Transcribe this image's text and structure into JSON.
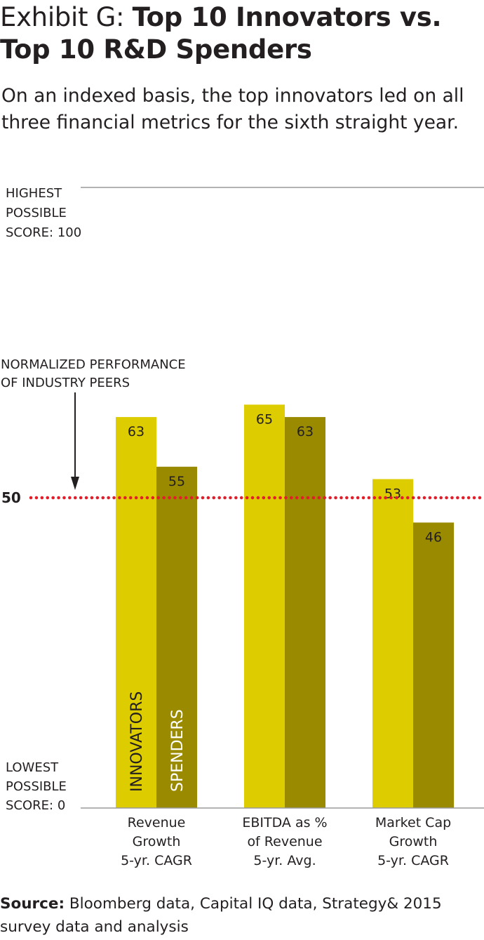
{
  "title": {
    "prefix": "Exhibit G: ",
    "main": "Top 10 Innovators vs. Top 10 R&D Spenders"
  },
  "subtitle": "On an indexed basis, the top innovators led on all three financial metrics for the sixth straight year.",
  "source": {
    "label": "Source:",
    "text": " Bloomberg data, Capital IQ data, Strategy& 2015 survey data and analysis"
  },
  "colors": {
    "innovators": "#ddcc00",
    "spenders": "#998a00",
    "reference_line": "#e31e2b",
    "axis": "#9a9a9a",
    "text": "#231f20"
  },
  "chart_data": {
    "type": "bar",
    "ylim": [
      0,
      100
    ],
    "categories": [
      [
        "Revenue",
        "Growth",
        "5-yr. CAGR"
      ],
      [
        "EBITDA as %",
        "of Revenue",
        "5-yr. Avg."
      ],
      [
        "Market Cap",
        "Growth",
        "5-yr. CAGR"
      ]
    ],
    "series": [
      {
        "name": "INNOVATORS",
        "values": [
          63,
          65,
          53
        ]
      },
      {
        "name": "SPENDERS",
        "values": [
          55,
          63,
          46
        ]
      }
    ],
    "reference_line": {
      "value": 50,
      "label": "50",
      "annotation": [
        "NORMALIZED PERFORMANCE",
        "OF INDUSTRY PEERS"
      ]
    },
    "top_label": [
      "HIGHEST",
      "POSSIBLE",
      "SCORE: 100"
    ],
    "bottom_label": [
      "LOWEST",
      "POSSIBLE",
      "SCORE: 0"
    ]
  }
}
